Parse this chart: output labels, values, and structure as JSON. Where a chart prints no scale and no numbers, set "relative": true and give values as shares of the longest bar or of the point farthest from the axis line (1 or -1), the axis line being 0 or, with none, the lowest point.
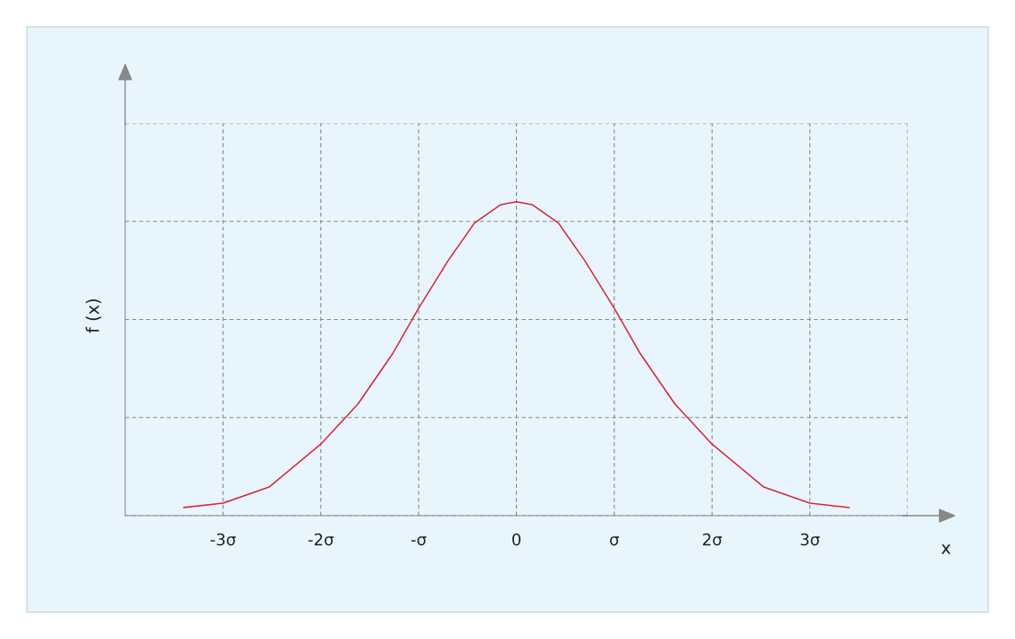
{
  "chart_data": {
    "type": "line",
    "relative": true,
    "xlabel": "x",
    "ylabel": "f (x)",
    "x": [
      -3.4,
      -3.0,
      -2.53,
      -2.0,
      -1.62,
      -1.26,
      -1.0,
      -0.7,
      -0.43,
      -0.16,
      0,
      0.16,
      0.43,
      0.7,
      1.0,
      1.26,
      1.62,
      2.0,
      2.53,
      3.0,
      3.4
    ],
    "series": [
      {
        "color": "#d9263a",
        "values": [
          0.026,
          0.04,
          0.091,
          0.228,
          0.356,
          0.519,
          0.661,
          0.812,
          0.932,
          0.991,
          1,
          0.991,
          0.932,
          0.812,
          0.661,
          0.519,
          0.356,
          0.228,
          0.091,
          0.04,
          0.026
        ]
      }
    ],
    "xlim": [
      -4,
      4
    ],
    "xticks": [
      {
        "value": -3,
        "label": "-3σ"
      },
      {
        "value": -2,
        "label": "-2σ"
      },
      {
        "value": -1,
        "label": "-σ"
      },
      0,
      {
        "value": 1,
        "label": "σ"
      },
      {
        "value": 2,
        "label": "2σ"
      },
      {
        "value": 3,
        "label": "3σ"
      },
      {
        "value": 4,
        "label": null
      }
    ],
    "tick_labels": "x",
    "grid": true,
    "line_style": "solid",
    "marker": "none"
  }
}
